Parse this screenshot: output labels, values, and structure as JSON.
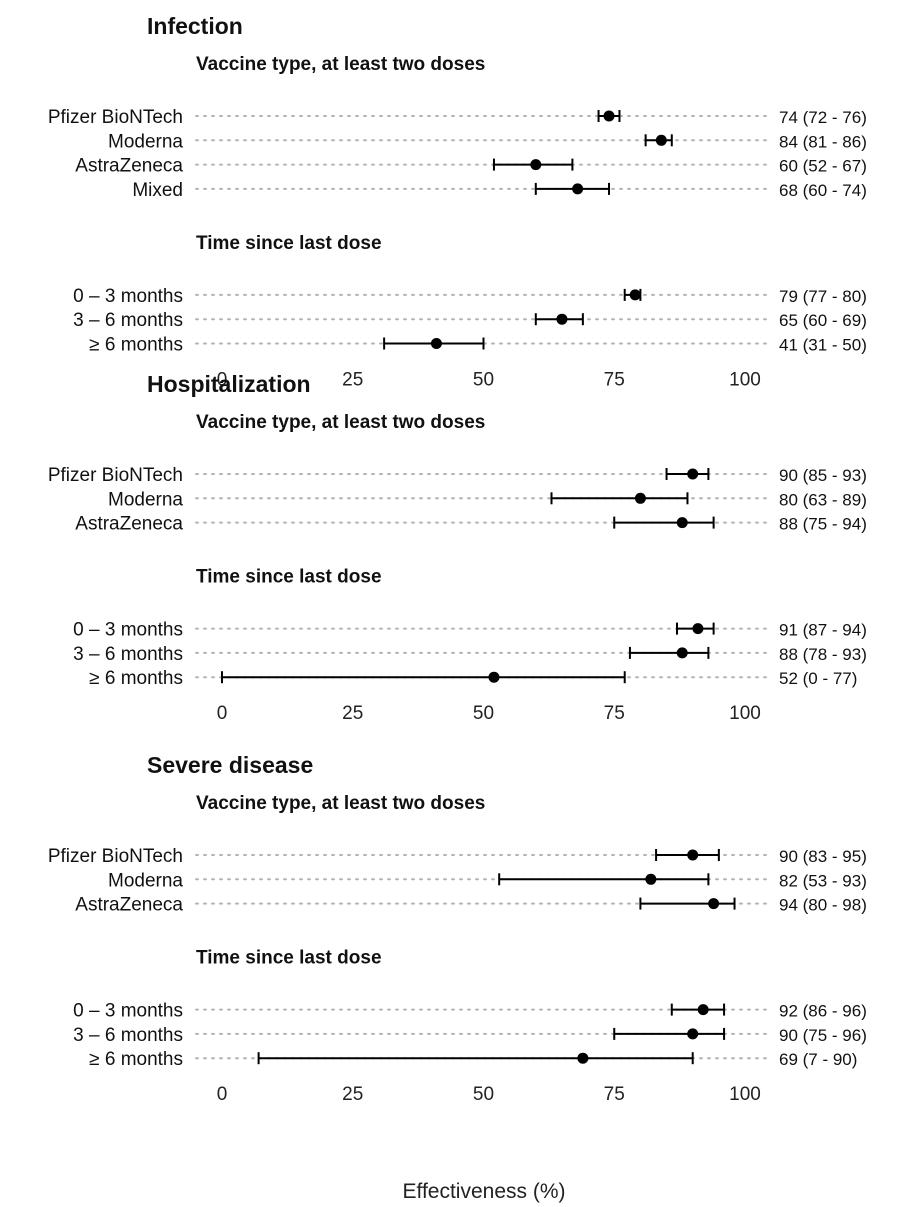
{
  "chart_data": {
    "type": "forest",
    "xlabel": "Effectiveness (%)",
    "xlim": [
      0,
      100
    ],
    "xticks": [
      0,
      25,
      50,
      75,
      100
    ],
    "xtick_labels": [
      "0",
      "25",
      "50",
      "75",
      "100"
    ],
    "grid": "dotted horizontal guide per row",
    "point_color": "#000000",
    "guide_color": "#b3b3b3",
    "panels": [
      {
        "title": "Infection",
        "groups": [
          {
            "title": "Vaccine type, at least two doses",
            "rows": [
              {
                "label": "Pfizer BioNTech",
                "estimate": 74,
                "lower": 72,
                "upper": 76,
                "text": "74 (72 - 76)"
              },
              {
                "label": "Moderna",
                "estimate": 84,
                "lower": 81,
                "upper": 86,
                "text": "84 (81 - 86)"
              },
              {
                "label": "AstraZeneca",
                "estimate": 60,
                "lower": 52,
                "upper": 67,
                "text": "60 (52 - 67)"
              },
              {
                "label": "Mixed",
                "estimate": 68,
                "lower": 60,
                "upper": 74,
                "text": "68 (60 - 74)"
              }
            ]
          },
          {
            "title": "Time since last dose",
            "rows": [
              {
                "label": "0 – 3 months",
                "estimate": 79,
                "lower": 77,
                "upper": 80,
                "text": "79 (77 - 80)"
              },
              {
                "label": "3 – 6 months",
                "estimate": 65,
                "lower": 60,
                "upper": 69,
                "text": "65 (60 - 69)"
              },
              {
                "label": "≥ 6 months",
                "estimate": 41,
                "lower": 31,
                "upper": 50,
                "text": "41 (31 - 50)"
              }
            ]
          }
        ]
      },
      {
        "title": "Hospitalization",
        "groups": [
          {
            "title": "Vaccine type, at least two doses",
            "rows": [
              {
                "label": "Pfizer BioNTech",
                "estimate": 90,
                "lower": 85,
                "upper": 93,
                "text": "90 (85 - 93)"
              },
              {
                "label": "Moderna",
                "estimate": 80,
                "lower": 63,
                "upper": 89,
                "text": "80 (63 - 89)"
              },
              {
                "label": "AstraZeneca",
                "estimate": 88,
                "lower": 75,
                "upper": 94,
                "text": "88 (75 - 94)"
              }
            ]
          },
          {
            "title": "Time since last dose",
            "rows": [
              {
                "label": "0 – 3 months",
                "estimate": 91,
                "lower": 87,
                "upper": 94,
                "text": "91 (87 - 94)"
              },
              {
                "label": "3 – 6 months",
                "estimate": 88,
                "lower": 78,
                "upper": 93,
                "text": "88 (78 - 93)"
              },
              {
                "label": "≥ 6 months",
                "estimate": 52,
                "lower": 0,
                "upper": 77,
                "text": "52 (0 - 77)"
              }
            ]
          }
        ]
      },
      {
        "title": "Severe disease",
        "groups": [
          {
            "title": "Vaccine type, at least two doses",
            "rows": [
              {
                "label": "Pfizer BioNTech",
                "estimate": 90,
                "lower": 83,
                "upper": 95,
                "text": "90 (83 - 95)"
              },
              {
                "label": "Moderna",
                "estimate": 82,
                "lower": 53,
                "upper": 93,
                "text": "82 (53 - 93)"
              },
              {
                "label": "AstraZeneca",
                "estimate": 94,
                "lower": 80,
                "upper": 98,
                "text": "94 (80 - 98)"
              }
            ]
          },
          {
            "title": "Time since last dose",
            "rows": [
              {
                "label": "0 – 3 months",
                "estimate": 92,
                "lower": 86,
                "upper": 96,
                "text": "92 (86 - 96)"
              },
              {
                "label": "3 – 6 months",
                "estimate": 90,
                "lower": 75,
                "upper": 96,
                "text": "90 (75 - 96)"
              },
              {
                "label": "≥ 6 months",
                "estimate": 69,
                "lower": 7,
                "upper": 90,
                "text": "69 (7 - 90)"
              }
            ]
          }
        ]
      }
    ]
  }
}
